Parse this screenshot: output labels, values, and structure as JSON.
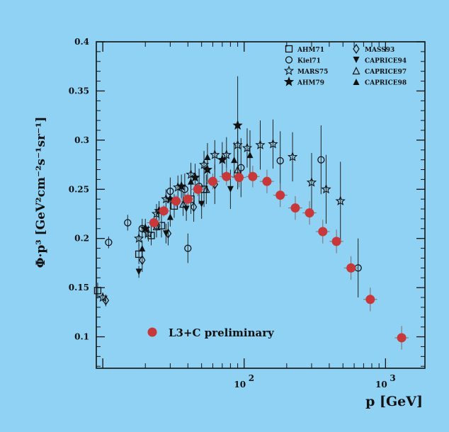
{
  "chart_data": {
    "type": "scatter",
    "xlabel": "p [GeV]",
    "ylabel": "Φ·p³ [GeV²cm⁻²s⁻¹sr⁻¹]",
    "xscale": "log",
    "xlim": [
      9,
      1900
    ],
    "ylim": [
      0.068,
      0.4
    ],
    "x_ticks": [
      {
        "value": 100,
        "label": "10",
        "exp": "2"
      },
      {
        "value": 1000,
        "label": "10",
        "exp": "3"
      }
    ],
    "y_ticks": [
      0.1,
      0.15,
      0.2,
      0.25,
      0.3,
      0.35,
      0.4
    ],
    "y_tick_labels": [
      "0.1",
      "0.15",
      "0.2",
      "0.25",
      "0.3",
      "0.35",
      "0.4"
    ],
    "legend_position": "top-right",
    "series": [
      {
        "name": "AHM71",
        "marker": "square-open",
        "points": [
          [
            9.2,
            0.147,
            0.008
          ],
          [
            18,
            0.184,
            0.01
          ],
          [
            22,
            0.203,
            0.01
          ],
          [
            26,
            0.213,
            0.012
          ],
          [
            32,
            0.233,
            0.012
          ],
          [
            42,
            0.24,
            0.015
          ],
          [
            52,
            0.25,
            0.018
          ]
        ]
      },
      {
        "name": "Kiel71",
        "marker": "circle-open",
        "points": [
          [
            11,
            0.196,
            0.006
          ],
          [
            15,
            0.216,
            0.008
          ],
          [
            19,
            0.21,
            0.01
          ],
          [
            24,
            0.213,
            0.012
          ],
          [
            30,
            0.248,
            0.014
          ],
          [
            38,
            0.25,
            0.016
          ],
          [
            40,
            0.19,
            0.015
          ],
          [
            48,
            0.253,
            0.018
          ],
          [
            95,
            0.272,
            0.03
          ],
          [
            180,
            0.279,
            0.03
          ],
          [
            350,
            0.28,
            0.035
          ],
          [
            640,
            0.17,
            0.03
          ]
        ]
      },
      {
        "name": "MARS75",
        "marker": "star-open",
        "points": [
          [
            10,
            0.14,
            0.004
          ],
          [
            18,
            0.2,
            0.008
          ],
          [
            21,
            0.205,
            0.008
          ],
          [
            24,
            0.225,
            0.01
          ],
          [
            28,
            0.24,
            0.01
          ],
          [
            34,
            0.252,
            0.012
          ],
          [
            42,
            0.265,
            0.012
          ],
          [
            52,
            0.275,
            0.014
          ],
          [
            62,
            0.285,
            0.015
          ],
          [
            75,
            0.285,
            0.018
          ],
          [
            90,
            0.295,
            0.02
          ],
          [
            105,
            0.292,
            0.02
          ],
          [
            130,
            0.295,
            0.025
          ],
          [
            160,
            0.296,
            0.025
          ],
          [
            220,
            0.283,
            0.025
          ],
          [
            300,
            0.257,
            0.03
          ],
          [
            380,
            0.25,
            0.035
          ],
          [
            480,
            0.238,
            0.04
          ]
        ]
      },
      {
        "name": "AHM79",
        "marker": "star-filled",
        "points": [
          [
            20,
            0.21,
            0.01
          ],
          [
            25,
            0.228,
            0.01
          ],
          [
            30,
            0.24,
            0.01
          ],
          [
            36,
            0.253,
            0.012
          ],
          [
            45,
            0.262,
            0.014
          ],
          [
            55,
            0.27,
            0.015
          ],
          [
            70,
            0.28,
            0.018
          ],
          [
            90,
            0.315,
            0.05
          ]
        ]
      },
      {
        "name": "MASS93",
        "marker": "diamond-open",
        "points": [
          [
            10.5,
            0.137,
            0.006
          ],
          [
            19,
            0.178,
            0.012
          ],
          [
            29,
            0.205,
            0.012
          ],
          [
            44,
            0.232,
            0.015
          ],
          [
            62,
            0.255,
            0.02
          ]
        ]
      },
      {
        "name": "CAPRICE94",
        "marker": "triangle-down-filled",
        "points": [
          [
            18,
            0.166,
            0.006
          ],
          [
            28,
            0.205,
            0.01
          ],
          [
            39,
            0.23,
            0.012
          ],
          [
            50,
            0.235,
            0.015
          ],
          [
            80,
            0.25,
            0.02
          ]
        ]
      },
      {
        "name": "CAPRICE97",
        "marker": "triangle-open",
        "points": [
          [
            24,
            0.212,
            0.01
          ],
          [
            37,
            0.235,
            0.012
          ],
          [
            54,
            0.25,
            0.015
          ],
          [
            90,
            0.27,
            0.02
          ]
        ]
      },
      {
        "name": "CAPRICE98",
        "marker": "triangle-filled",
        "points": [
          [
            19,
            0.19,
            0.008
          ],
          [
            30,
            0.222,
            0.01
          ],
          [
            42,
            0.258,
            0.012
          ],
          [
            55,
            0.283,
            0.014
          ],
          [
            85,
            0.28,
            0.018
          ],
          [
            110,
            0.285,
            0.025
          ]
        ]
      },
      {
        "name": "L3+C preliminary",
        "marker": "big-dot",
        "color": "#c8383a",
        "points": [
          [
            23,
            0.216,
            0.005
          ],
          [
            27,
            0.228,
            0.006
          ],
          [
            33,
            0.238,
            0.006
          ],
          [
            40,
            0.24,
            0.007
          ],
          [
            47,
            0.25,
            0.007
          ],
          [
            60,
            0.258,
            0.008
          ],
          [
            75,
            0.263,
            0.009
          ],
          [
            92,
            0.262,
            0.01
          ],
          [
            115,
            0.263,
            0.011
          ],
          [
            145,
            0.258,
            0.012
          ],
          [
            180,
            0.244,
            0.012
          ],
          [
            230,
            0.231,
            0.012
          ],
          [
            290,
            0.226,
            0.012
          ],
          [
            360,
            0.207,
            0.012
          ],
          [
            450,
            0.197,
            0.012
          ],
          [
            570,
            0.17,
            0.012
          ],
          [
            780,
            0.138,
            0.012
          ],
          [
            1300,
            0.099,
            0.012
          ]
        ]
      }
    ]
  }
}
